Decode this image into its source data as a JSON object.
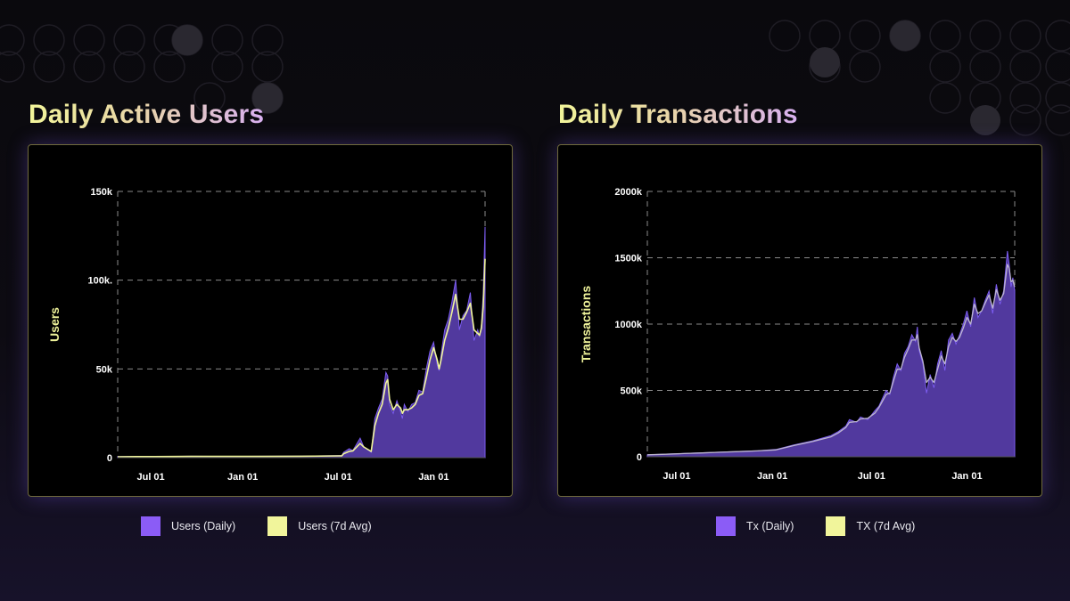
{
  "colors": {
    "daily_fill": "#51399e",
    "daily_stroke": "#7b5cf0",
    "avg_line": "#f0f59a",
    "avg_line_tx": "#bdb6cf",
    "grid": "#8a8a8a",
    "legend_daily": "#8b5cf6",
    "legend_avg": "#f1f59b"
  },
  "charts": [
    {
      "title": "Daily Active Users",
      "legend": [
        {
          "label": "Users (Daily)",
          "color": "#8b5cf6"
        },
        {
          "label": "Users (7d Avg)",
          "color": "#f1f59b"
        }
      ]
    },
    {
      "title": "Daily Transactions",
      "legend": [
        {
          "label": "Tx (Daily)",
          "color": "#8b5cf6"
        },
        {
          "label": "TX (7d Avg)",
          "color": "#f1f59b"
        }
      ]
    }
  ],
  "chart_data": [
    {
      "type": "area",
      "ylabel": "Users",
      "xlabel": "",
      "ylim": [
        0,
        150000
      ],
      "yticks": [
        0,
        50000,
        100000,
        150000
      ],
      "ytick_labels": [
        "0",
        "50k",
        "100k.",
        "150k"
      ],
      "xticks": [
        {
          "x": 0.09,
          "label": "Jul 01"
        },
        {
          "x": 0.34,
          "label": "Jan 01"
        },
        {
          "x": 0.6,
          "label": "Jul 01"
        },
        {
          "x": 0.86,
          "label": "Jan 01"
        }
      ],
      "grid": true,
      "legend_position": "bottom",
      "series": [
        {
          "name": "Users (Daily)",
          "x": [
            0,
            0.05,
            0.1,
            0.2,
            0.3,
            0.4,
            0.5,
            0.61,
            0.615,
            0.63,
            0.64,
            0.66,
            0.67,
            0.69,
            0.7,
            0.71,
            0.72,
            0.73,
            0.735,
            0.74,
            0.75,
            0.76,
            0.77,
            0.775,
            0.78,
            0.79,
            0.8,
            0.81,
            0.82,
            0.83,
            0.84,
            0.85,
            0.86,
            0.87,
            0.875,
            0.88,
            0.89,
            0.9,
            0.91,
            0.92,
            0.93,
            0.94,
            0.95,
            0.96,
            0.97,
            0.98,
            0.985,
            0.99,
            0.995,
            1
          ],
          "values": [
            600,
            700,
            600,
            800,
            700,
            800,
            900,
            1200,
            3000,
            5000,
            4000,
            11000,
            6000,
            3000,
            22000,
            28000,
            33000,
            48000,
            46000,
            30000,
            25000,
            32000,
            26000,
            22000,
            30000,
            26000,
            30000,
            31000,
            38000,
            37000,
            50000,
            60000,
            65000,
            52000,
            49000,
            58000,
            72000,
            78000,
            88000,
            100000,
            72000,
            80000,
            83000,
            93000,
            66000,
            72000,
            68000,
            75000,
            92000,
            130000
          ]
        },
        {
          "name": "Users (7d Avg)",
          "x": [
            0,
            0.05,
            0.1,
            0.2,
            0.3,
            0.4,
            0.5,
            0.61,
            0.615,
            0.63,
            0.64,
            0.66,
            0.67,
            0.69,
            0.7,
            0.71,
            0.72,
            0.73,
            0.735,
            0.74,
            0.75,
            0.76,
            0.77,
            0.775,
            0.78,
            0.79,
            0.8,
            0.81,
            0.82,
            0.83,
            0.84,
            0.85,
            0.86,
            0.87,
            0.875,
            0.88,
            0.89,
            0.9,
            0.91,
            0.92,
            0.93,
            0.94,
            0.95,
            0.96,
            0.97,
            0.98,
            0.985,
            0.99,
            0.995,
            1
          ],
          "values": [
            500,
            600,
            600,
            700,
            700,
            700,
            800,
            1000,
            2200,
            3500,
            3800,
            8000,
            6000,
            3500,
            18000,
            25000,
            30000,
            42000,
            44000,
            33000,
            27000,
            30000,
            28000,
            25000,
            27000,
            27000,
            28000,
            30000,
            35000,
            36000,
            45000,
            55000,
            62000,
            55000,
            50000,
            55000,
            66000,
            73000,
            82000,
            92000,
            78000,
            78000,
            82000,
            87000,
            72000,
            70000,
            69000,
            73000,
            85000,
            112000
          ]
        }
      ]
    },
    {
      "type": "area",
      "ylabel": "Transactions",
      "xlabel": "",
      "ylim": [
        0,
        2000000
      ],
      "yticks": [
        0,
        500000,
        1000000,
        1500000,
        2000000
      ],
      "ytick_labels": [
        "0",
        "500k",
        "1000k",
        "1500k",
        "2000k"
      ],
      "xticks": [
        {
          "x": 0.08,
          "label": "Jul 01"
        },
        {
          "x": 0.34,
          "label": "Jan 01"
        },
        {
          "x": 0.61,
          "label": "Jul 01"
        },
        {
          "x": 0.87,
          "label": "Jan 01"
        }
      ],
      "grid": true,
      "legend_position": "bottom",
      "series": [
        {
          "name": "Tx (Daily)",
          "x": [
            0,
            0.05,
            0.1,
            0.15,
            0.2,
            0.25,
            0.3,
            0.35,
            0.4,
            0.45,
            0.5,
            0.52,
            0.54,
            0.55,
            0.57,
            0.58,
            0.6,
            0.62,
            0.63,
            0.65,
            0.66,
            0.67,
            0.68,
            0.69,
            0.7,
            0.71,
            0.72,
            0.73,
            0.735,
            0.74,
            0.75,
            0.76,
            0.77,
            0.78,
            0.79,
            0.8,
            0.81,
            0.82,
            0.83,
            0.84,
            0.85,
            0.86,
            0.87,
            0.88,
            0.89,
            0.9,
            0.91,
            0.92,
            0.93,
            0.94,
            0.95,
            0.96,
            0.97,
            0.98,
            0.985,
            0.99,
            0.995,
            1
          ],
          "values": [
            15000,
            20000,
            25000,
            30000,
            35000,
            40000,
            45000,
            55000,
            90000,
            120000,
            160000,
            190000,
            230000,
            280000,
            260000,
            300000,
            280000,
            350000,
            380000,
            500000,
            470000,
            600000,
            700000,
            650000,
            780000,
            830000,
            920000,
            870000,
            980000,
            800000,
            700000,
            480000,
            620000,
            520000,
            700000,
            800000,
            650000,
            880000,
            930000,
            850000,
            920000,
            1000000,
            1100000,
            980000,
            1200000,
            1050000,
            1100000,
            1180000,
            1250000,
            1080000,
            1300000,
            1150000,
            1250000,
            1550000,
            1450000,
            1280000,
            1350000,
            1250000
          ]
        },
        {
          "name": "TX (7d Avg)",
          "x": [
            0,
            0.05,
            0.1,
            0.15,
            0.2,
            0.25,
            0.3,
            0.35,
            0.4,
            0.45,
            0.5,
            0.52,
            0.54,
            0.55,
            0.57,
            0.58,
            0.6,
            0.62,
            0.63,
            0.65,
            0.66,
            0.67,
            0.68,
            0.69,
            0.7,
            0.71,
            0.72,
            0.73,
            0.735,
            0.74,
            0.75,
            0.76,
            0.77,
            0.78,
            0.79,
            0.8,
            0.81,
            0.82,
            0.83,
            0.84,
            0.85,
            0.86,
            0.87,
            0.88,
            0.89,
            0.9,
            0.91,
            0.92,
            0.93,
            0.94,
            0.95,
            0.96,
            0.97,
            0.98,
            0.985,
            0.99,
            0.995,
            1
          ],
          "values": [
            15000,
            19000,
            24000,
            29000,
            34000,
            39000,
            44000,
            52000,
            85000,
            115000,
            150000,
            180000,
            220000,
            260000,
            265000,
            285000,
            290000,
            330000,
            370000,
            470000,
            480000,
            570000,
            660000,
            660000,
            750000,
            810000,
            880000,
            880000,
            920000,
            820000,
            720000,
            560000,
            600000,
            560000,
            660000,
            760000,
            700000,
            830000,
            900000,
            870000,
            900000,
            970000,
            1050000,
            1000000,
            1150000,
            1080000,
            1100000,
            1160000,
            1220000,
            1120000,
            1260000,
            1180000,
            1230000,
            1450000,
            1420000,
            1320000,
            1330000,
            1280000
          ]
        }
      ]
    }
  ]
}
